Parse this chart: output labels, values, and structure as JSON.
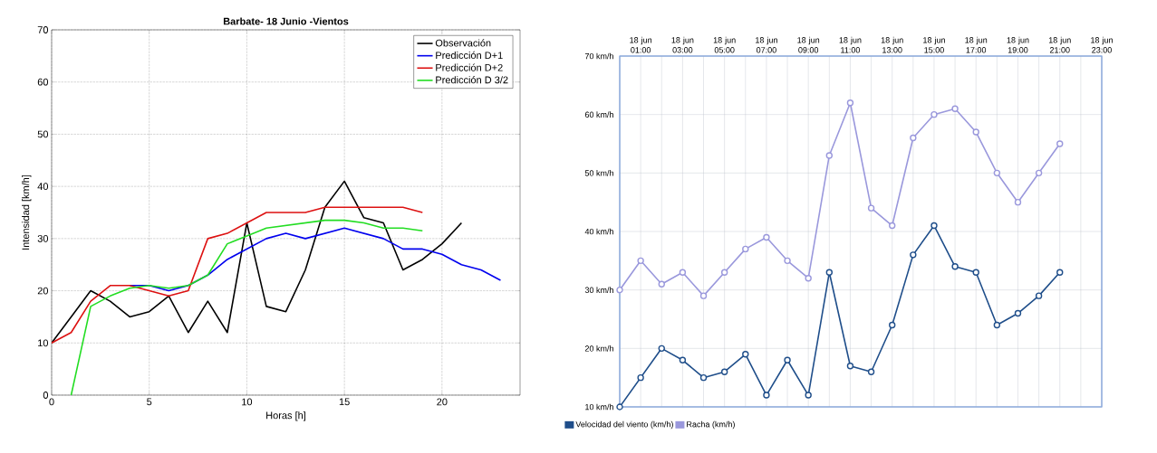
{
  "chart_data": [
    {
      "type": "line",
      "title": "Barbate- 18 Junio -Vientos",
      "xlabel": "Horas [h]",
      "ylabel": "Intensidad [km/h]",
      "xlim": [
        0,
        24
      ],
      "ylim": [
        0,
        70
      ],
      "xticks": [
        0,
        5,
        10,
        15,
        20
      ],
      "yticks": [
        0,
        10,
        20,
        30,
        40,
        50,
        60,
        70
      ],
      "grid": true,
      "legend": "top right",
      "series": [
        {
          "name": "Observación",
          "color": "#000000",
          "x": [
            0,
            1,
            2,
            3,
            4,
            5,
            6,
            7,
            8,
            9,
            10,
            11,
            12,
            13,
            14,
            15,
            16,
            17,
            18,
            19,
            20,
            21
          ],
          "values": [
            10,
            15,
            20,
            18,
            15,
            16,
            19,
            12,
            18,
            12,
            33,
            17,
            16,
            24,
            36,
            41,
            34,
            33,
            24,
            26,
            29,
            33
          ]
        },
        {
          "name": "Predicción D+1",
          "color": "#0000ee",
          "x": [
            4,
            5,
            6,
            7,
            8,
            9,
            10,
            11,
            12,
            13,
            14,
            15,
            16,
            17,
            18,
            19,
            20,
            21,
            22,
            23
          ],
          "values": [
            21,
            21,
            20,
            21,
            23,
            26,
            28,
            30,
            31,
            30,
            31,
            32,
            31,
            30,
            28,
            28,
            27,
            25,
            24,
            22
          ]
        },
        {
          "name": "Predicción D+2",
          "color": "#dd1111",
          "x": [
            0,
            1,
            2,
            3,
            4,
            5,
            6,
            7,
            8,
            9,
            10,
            11,
            12,
            13,
            14,
            15,
            16,
            17,
            18,
            19
          ],
          "values": [
            10,
            12,
            18,
            21,
            21,
            20,
            19,
            20,
            30,
            31,
            33,
            35,
            35,
            35,
            36,
            36,
            36,
            36,
            36,
            35
          ]
        },
        {
          "name": "Predicción D 3/2",
          "color": "#22dd22",
          "x": [
            1,
            2,
            3,
            4,
            5,
            6,
            7,
            8,
            9,
            10,
            11,
            12,
            13,
            14,
            15,
            16,
            17,
            18,
            19
          ],
          "values": [
            0,
            17,
            19,
            20.5,
            21,
            20.5,
            21,
            23,
            29,
            30.5,
            32,
            32.5,
            33,
            33.5,
            33.5,
            33,
            32,
            32,
            31.5
          ]
        }
      ]
    },
    {
      "type": "line",
      "categories": [
        null,
        "18 jun 01:00",
        null,
        "18 jun 03:00",
        null,
        "18 jun 05:00",
        null,
        "18 jun 07:00",
        null,
        "18 jun 09:00",
        null,
        "18 jun 11:00",
        null,
        "18 jun 13:00",
        null,
        "18 jun 15:00",
        null,
        "18 jun 17:00",
        null,
        "18 jun 19:00",
        null,
        "18 jun 21:00",
        null,
        "18 jun 23:00"
      ],
      "ylim": [
        10,
        70
      ],
      "yticks": [
        {
          "value": 10,
          "label": "10 km/h"
        },
        {
          "value": 20,
          "label": "20 km/h"
        },
        {
          "value": 30,
          "label": "30 km/h"
        },
        {
          "value": 40,
          "label": "40 km/h"
        },
        {
          "value": 50,
          "label": "50 km/h"
        },
        {
          "value": 60,
          "label": "60 km/h"
        },
        {
          "value": 70,
          "label": "70 km/h"
        }
      ],
      "grid": true,
      "legend": "bottom left",
      "marker": "circle",
      "series": [
        {
          "name": "Velocidad del viento (km/h)",
          "color": "#1f4e8a",
          "values": [
            10,
            15,
            20,
            18,
            15,
            16,
            19,
            12,
            18,
            12,
            33,
            17,
            16,
            24,
            36,
            41,
            34,
            33,
            24,
            26,
            29,
            33,
            null,
            null
          ]
        },
        {
          "name": "Racha (km/h)",
          "color": "#9a98dc",
          "values": [
            30,
            35,
            31,
            33,
            29,
            33,
            37,
            39,
            35,
            32,
            53,
            62,
            44,
            41,
            56,
            60,
            61,
            57,
            50,
            45,
            50,
            55,
            null,
            null
          ]
        }
      ]
    }
  ]
}
